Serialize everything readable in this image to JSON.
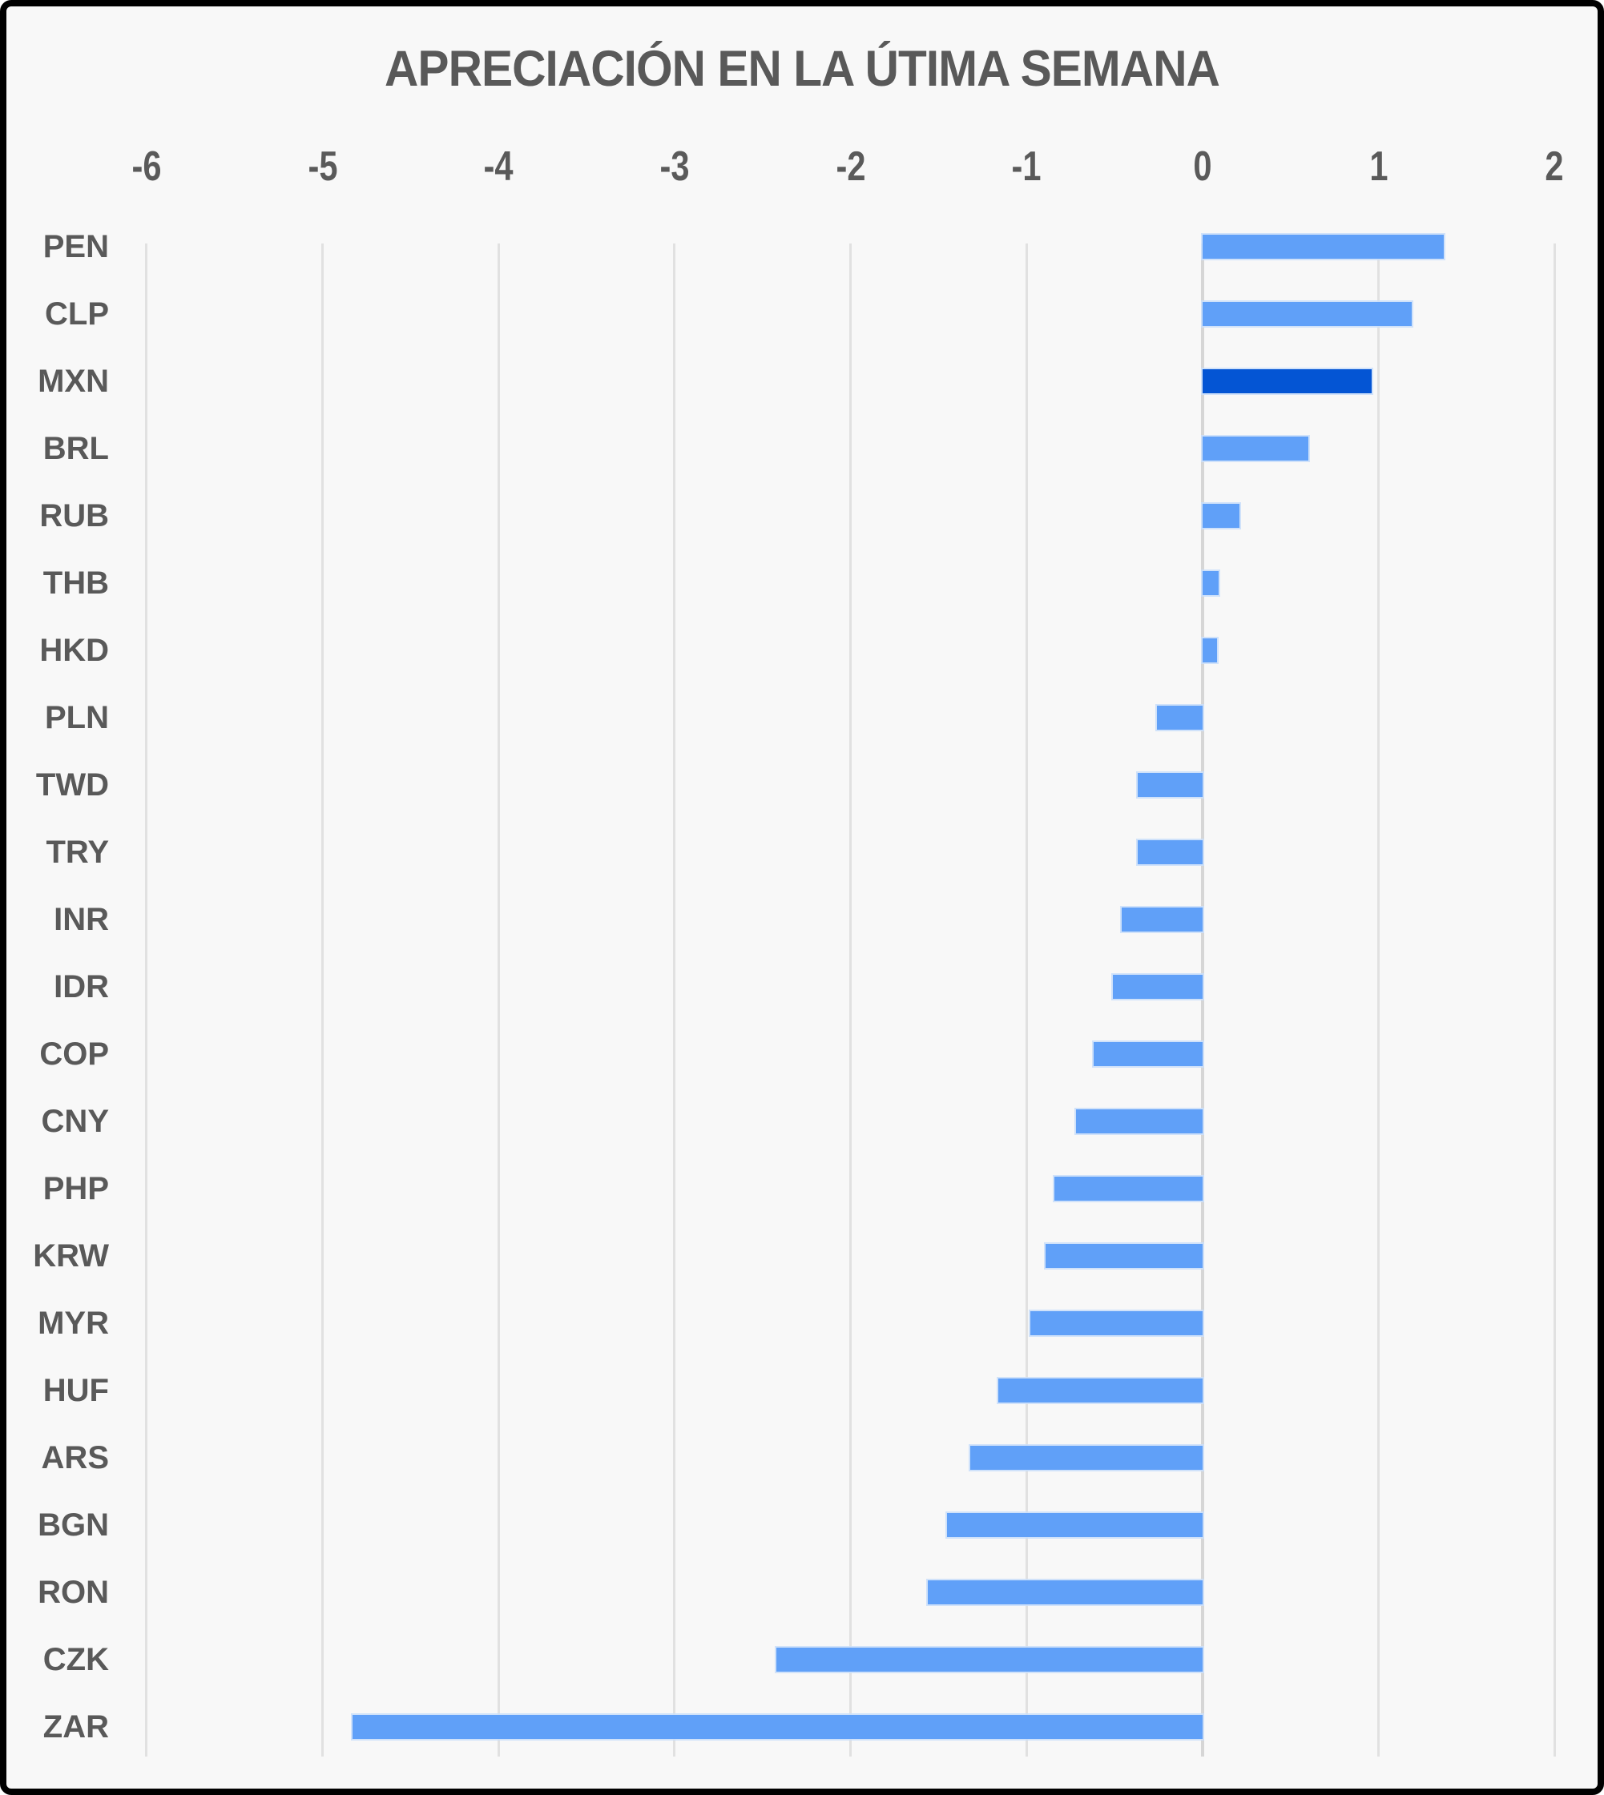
{
  "title": "APRECIACIÓN EN LA ÚTIMA SEMANA",
  "colors": {
    "bar": "#60a0f8",
    "highlight_bar": "#0455d4",
    "background": "#f8f8f8",
    "grid": "#e1e1e1",
    "text": "#595959",
    "frame_border": "#000000"
  },
  "chart_data": {
    "type": "bar",
    "orientation": "horizontal",
    "title": "APRECIACIÓN EN LA ÚTIMA SEMANA",
    "categories": [
      "PEN",
      "CLP",
      "MXN",
      "BRL",
      "RUB",
      "THB",
      "HKD",
      "PLN",
      "TWD",
      "TRY",
      "INR",
      "IDR",
      "COP",
      "CNY",
      "PHP",
      "KRW",
      "MYR",
      "HUF",
      "ARS",
      "BGN",
      "RON",
      "CZK",
      "ZAR"
    ],
    "values": [
      1.37,
      1.19,
      0.96,
      0.6,
      0.21,
      0.09,
      0.08,
      -0.26,
      -0.37,
      -0.37,
      -0.46,
      -0.51,
      -0.62,
      -0.72,
      -0.84,
      -0.89,
      -0.98,
      -1.16,
      -1.32,
      -1.45,
      -1.56,
      -2.42,
      -4.83
    ],
    "highlighted_category": "MXN",
    "xlabel": "",
    "ylabel": "",
    "xlim": [
      -6,
      2
    ],
    "x_ticks": [
      -6,
      -5,
      -4,
      -3,
      -2,
      -1,
      0,
      1,
      2
    ],
    "grid": true,
    "legend": "none",
    "axis_position": "top"
  }
}
